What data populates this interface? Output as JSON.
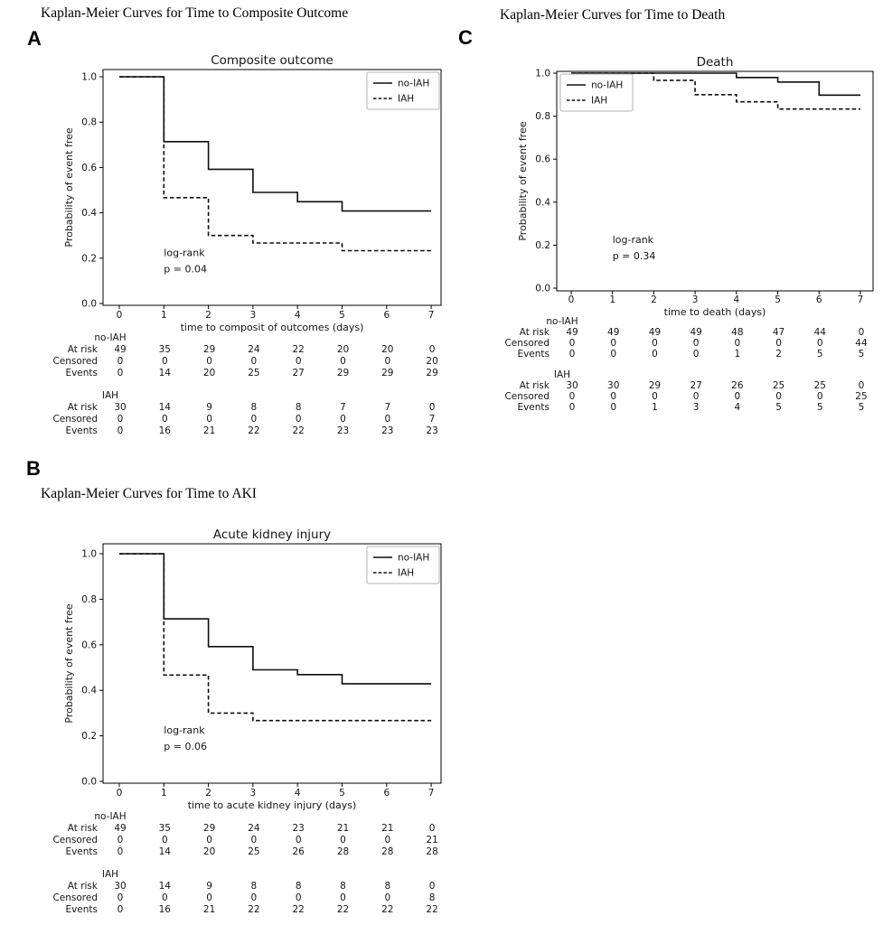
{
  "figure": {
    "background": "#ffffff",
    "line_color": "#0d0d0d",
    "legend_border_color": "#b3b3b3",
    "ylabel_shared": "Probability of event free"
  },
  "chart_data": [
    {
      "panel": "A",
      "type": "line",
      "subtype": "kaplan-meier-step",
      "caption": "Kaplan-Meier Curves for Time to Composite Outcome",
      "title": "Composite outcome",
      "xlabel": "time to composit of outcomes (days)",
      "ylabel": "Probability of event free",
      "xticks": [
        0,
        1,
        2,
        3,
        4,
        5,
        6,
        7
      ],
      "yticks": [
        "0.0",
        "0.2",
        "0.4",
        "0.6",
        "0.8",
        "1.0"
      ],
      "xlim": [
        0,
        7
      ],
      "ylim": [
        0,
        1
      ],
      "grid": false,
      "legend_position": "top-right",
      "annotation": {
        "lines": [
          "log-rank",
          "p = 0.04"
        ],
        "x": 1.0,
        "y": 0.21
      },
      "series": [
        {
          "name": "no-IAH",
          "style": "solid",
          "steps": [
            [
              0,
              1.0
            ],
            [
              1,
              0.714
            ],
            [
              2,
              0.592
            ],
            [
              3,
              0.49
            ],
            [
              4,
              0.449
            ],
            [
              5,
              0.408
            ]
          ],
          "end_x": 7
        },
        {
          "name": "IAH",
          "style": "dashed",
          "steps": [
            [
              0,
              1.0
            ],
            [
              1,
              0.467
            ],
            [
              2,
              0.3
            ],
            [
              3,
              0.267
            ],
            [
              5,
              0.233
            ]
          ],
          "end_x": 7
        }
      ],
      "risk_table": {
        "time_points": [
          0,
          1,
          2,
          3,
          4,
          5,
          6,
          7
        ],
        "groups": [
          {
            "name": "no-IAH",
            "rows": [
              {
                "label": "At risk",
                "values": [
                  49,
                  35,
                  29,
                  24,
                  22,
                  20,
                  20,
                  0
                ]
              },
              {
                "label": "Censored",
                "values": [
                  0,
                  0,
                  0,
                  0,
                  0,
                  0,
                  0,
                  20
                ]
              },
              {
                "label": "Events",
                "values": [
                  0,
                  14,
                  20,
                  25,
                  27,
                  29,
                  29,
                  29
                ]
              }
            ]
          },
          {
            "name": "IAH",
            "rows": [
              {
                "label": "At risk",
                "values": [
                  30,
                  14,
                  9,
                  8,
                  8,
                  7,
                  7,
                  0
                ]
              },
              {
                "label": "Censored",
                "values": [
                  0,
                  0,
                  0,
                  0,
                  0,
                  0,
                  0,
                  7
                ]
              },
              {
                "label": "Events",
                "values": [
                  0,
                  16,
                  21,
                  22,
                  22,
                  23,
                  23,
                  23
                ]
              }
            ]
          }
        ]
      }
    },
    {
      "panel": "B",
      "type": "line",
      "subtype": "kaplan-meier-step",
      "caption": "Kaplan-Meier Curves for Time to AKI",
      "title": "Acute kidney injury",
      "xlabel": "time to acute kidney injury (days)",
      "ylabel": "Probability of event free",
      "xticks": [
        0,
        1,
        2,
        3,
        4,
        5,
        6,
        7
      ],
      "yticks": [
        "0.0",
        "0.2",
        "0.4",
        "0.6",
        "0.8",
        "1.0"
      ],
      "xlim": [
        0,
        7
      ],
      "ylim": [
        0,
        1
      ],
      "grid": false,
      "legend_position": "top-right",
      "annotation": {
        "lines": [
          "log-rank",
          "p = 0.06"
        ],
        "x": 1.0,
        "y": 0.21
      },
      "series": [
        {
          "name": "no-IAH",
          "style": "solid",
          "steps": [
            [
              0,
              1.0
            ],
            [
              1,
              0.714
            ],
            [
              2,
              0.592
            ],
            [
              3,
              0.49
            ],
            [
              4,
              0.469
            ],
            [
              5,
              0.429
            ]
          ],
          "end_x": 7
        },
        {
          "name": "IAH",
          "style": "dashed",
          "steps": [
            [
              0,
              1.0
            ],
            [
              1,
              0.467
            ],
            [
              2,
              0.3
            ],
            [
              3,
              0.267
            ]
          ],
          "end_x": 7
        }
      ],
      "risk_table": {
        "time_points": [
          0,
          1,
          2,
          3,
          4,
          5,
          6,
          7
        ],
        "groups": [
          {
            "name": "no-IAH",
            "rows": [
              {
                "label": "At risk",
                "values": [
                  49,
                  35,
                  29,
                  24,
                  23,
                  21,
                  21,
                  0
                ]
              },
              {
                "label": "Censored",
                "values": [
                  0,
                  0,
                  0,
                  0,
                  0,
                  0,
                  0,
                  21
                ]
              },
              {
                "label": "Events",
                "values": [
                  0,
                  14,
                  20,
                  25,
                  26,
                  28,
                  28,
                  28
                ]
              }
            ]
          },
          {
            "name": "IAH",
            "rows": [
              {
                "label": "At risk",
                "values": [
                  30,
                  14,
                  9,
                  8,
                  8,
                  8,
                  8,
                  0
                ]
              },
              {
                "label": "Censored",
                "values": [
                  0,
                  0,
                  0,
                  0,
                  0,
                  0,
                  0,
                  8
                ]
              },
              {
                "label": "Events",
                "values": [
                  0,
                  16,
                  21,
                  22,
                  22,
                  22,
                  22,
                  22
                ]
              }
            ]
          }
        ]
      }
    },
    {
      "panel": "C",
      "type": "line",
      "subtype": "kaplan-meier-step",
      "caption": "Kaplan-Meier Curves for Time to Death",
      "title": "Death",
      "xlabel": "time to death (days)",
      "ylabel": "Probability of event free",
      "xticks": [
        0,
        1,
        2,
        3,
        4,
        5,
        6,
        7
      ],
      "yticks": [
        "0.0",
        "0.2",
        "0.4",
        "0.6",
        "0.8",
        "1.0"
      ],
      "xlim": [
        0,
        7
      ],
      "ylim": [
        0,
        1
      ],
      "grid": false,
      "legend_position": "top-left",
      "annotation": {
        "lines": [
          "log-rank",
          "p = 0.34"
        ],
        "x": 1.0,
        "y": 0.21
      },
      "series": [
        {
          "name": "no-IAH",
          "style": "solid",
          "steps": [
            [
              0,
              1.0
            ],
            [
              4,
              0.98
            ],
            [
              5,
              0.959
            ],
            [
              6,
              0.898
            ]
          ],
          "end_x": 7
        },
        {
          "name": "IAH",
          "style": "dashed",
          "steps": [
            [
              0,
              1.0
            ],
            [
              2,
              0.967
            ],
            [
              3,
              0.9
            ],
            [
              4,
              0.867
            ],
            [
              5,
              0.833
            ]
          ],
          "end_x": 7
        }
      ],
      "risk_table": {
        "time_points": [
          0,
          1,
          2,
          3,
          4,
          5,
          6,
          7
        ],
        "groups": [
          {
            "name": "no-IAH",
            "rows": [
              {
                "label": "At risk",
                "values": [
                  49,
                  49,
                  49,
                  49,
                  48,
                  47,
                  44,
                  0
                ]
              },
              {
                "label": "Censored",
                "values": [
                  0,
                  0,
                  0,
                  0,
                  0,
                  0,
                  0,
                  44
                ]
              },
              {
                "label": "Events",
                "values": [
                  0,
                  0,
                  0,
                  0,
                  1,
                  2,
                  5,
                  5
                ]
              }
            ]
          },
          {
            "name": "IAH",
            "rows": [
              {
                "label": "At risk",
                "values": [
                  30,
                  30,
                  29,
                  27,
                  26,
                  25,
                  25,
                  0
                ]
              },
              {
                "label": "Censored",
                "values": [
                  0,
                  0,
                  0,
                  0,
                  0,
                  0,
                  0,
                  25
                ]
              },
              {
                "label": "Events",
                "values": [
                  0,
                  0,
                  1,
                  3,
                  4,
                  5,
                  5,
                  5
                ]
              }
            ]
          }
        ]
      }
    }
  ]
}
